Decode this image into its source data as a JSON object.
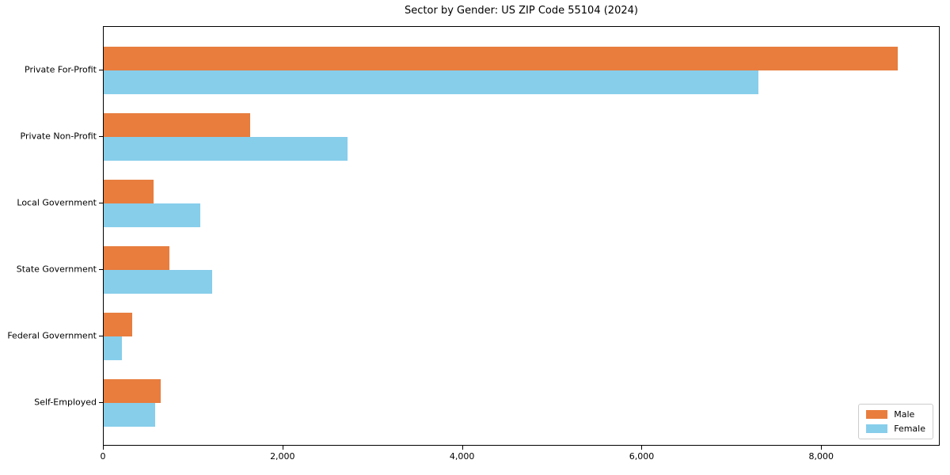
{
  "chart_data": {
    "type": "bar",
    "orientation": "horizontal",
    "title": "Sector by Gender: US ZIP Code 55104 (2024)",
    "categories": [
      "Private For-Profit",
      "Private Non-Profit",
      "Local Government",
      "State Government",
      "Federal Government",
      "Self-Employed"
    ],
    "series": [
      {
        "name": "Male",
        "color": "#e87d3e",
        "values": [
          8860,
          1630,
          560,
          730,
          320,
          640
        ]
      },
      {
        "name": "Female",
        "color": "#87ceeb",
        "values": [
          7310,
          2720,
          1080,
          1210,
          200,
          575
        ]
      }
    ],
    "xlabel": "",
    "ylabel": "",
    "xlim": [
      0,
      9320
    ],
    "xticks": [
      0,
      2000,
      4000,
      6000,
      8000
    ],
    "xtick_labels": [
      "0",
      "2,000",
      "4,000",
      "6,000",
      "8,000"
    ],
    "grid": false,
    "legend": {
      "position": "lower right",
      "entries": [
        "Male",
        "Female"
      ]
    }
  },
  "colors": {
    "male": "#e87d3e",
    "female": "#87ceeb",
    "spine": "#000000",
    "background": "#ffffff",
    "legend_border": "#cccccc"
  }
}
